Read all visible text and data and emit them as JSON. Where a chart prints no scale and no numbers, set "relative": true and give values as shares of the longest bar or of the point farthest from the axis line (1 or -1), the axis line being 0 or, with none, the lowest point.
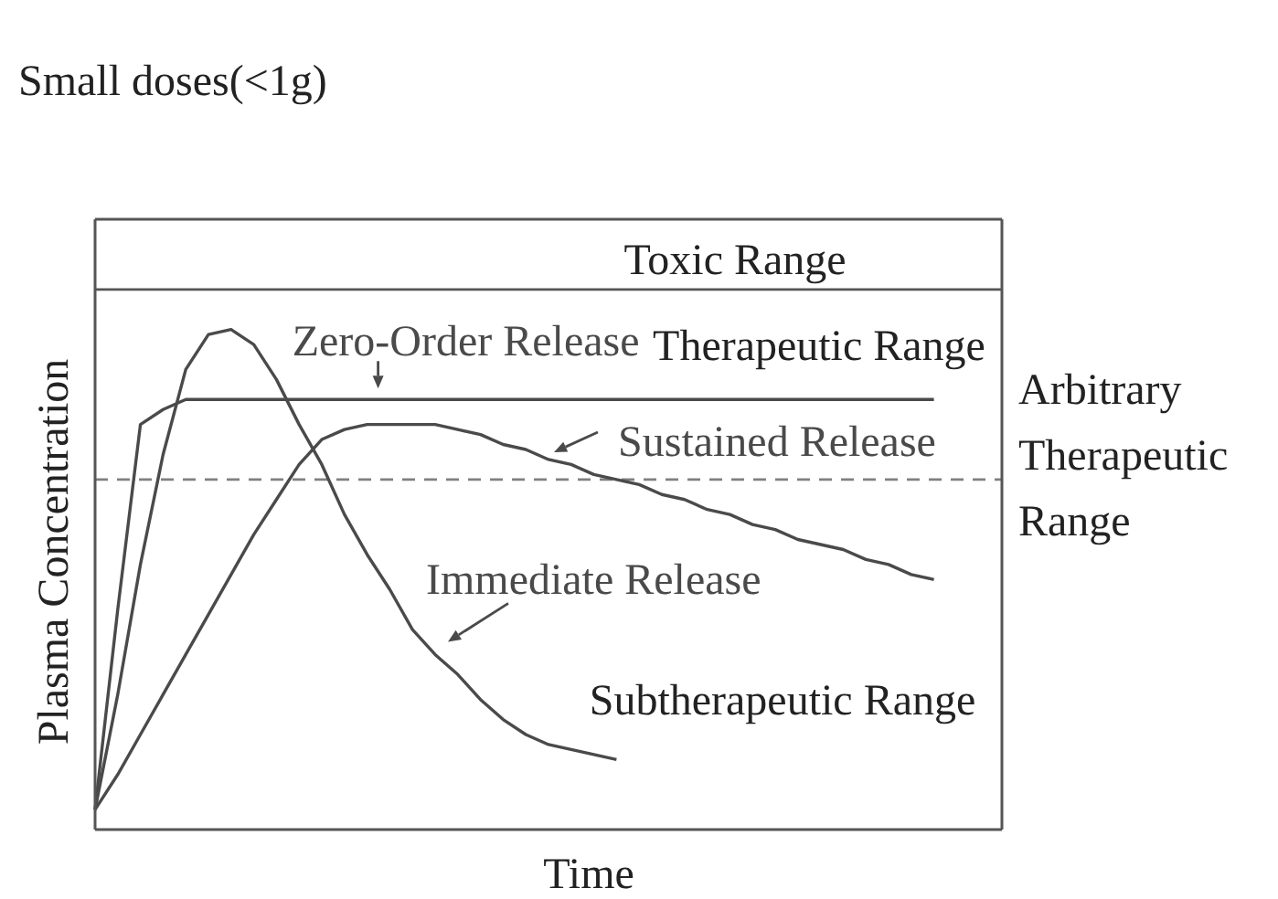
{
  "chart_data": {
    "type": "line",
    "relative": true,
    "title": "Small doses(<1g)",
    "xlabel": "Time",
    "ylabel": "Plasma Concentration",
    "categories": [
      null,
      null,
      null,
      null,
      null,
      null,
      null,
      null,
      null,
      null,
      null,
      null,
      null,
      null,
      null,
      null,
      null,
      null,
      null,
      null,
      null,
      null,
      null,
      null,
      null,
      null,
      null,
      null,
      null,
      null,
      null,
      null,
      null,
      null,
      null,
      null,
      null,
      null,
      null,
      null,
      null
    ],
    "series": [
      {
        "name": "Zero-Order Release",
        "color": "#4a4a4a",
        "values": [
          0.04,
          0.44,
          0.81,
          0.84,
          0.86,
          0.86,
          0.86,
          0.86,
          0.86,
          0.86,
          0.86,
          0.86,
          0.86,
          0.86,
          0.86,
          0.86,
          0.86,
          0.86,
          0.86,
          0.86,
          0.86,
          0.86,
          0.86,
          0.86,
          0.86,
          0.86,
          0.86,
          0.86,
          0.86,
          0.86,
          0.86,
          0.86,
          0.86,
          0.86,
          0.86,
          0.86,
          0.86,
          0.86,
          null,
          null,
          null
        ]
      },
      {
        "name": "Sustained Release",
        "color": "#4a4a4a",
        "values": [
          0.04,
          0.11,
          0.19,
          0.27,
          0.35,
          0.43,
          0.51,
          0.59,
          0.66,
          0.73,
          0.78,
          0.8,
          0.81,
          0.81,
          0.81,
          0.81,
          0.8,
          0.79,
          0.77,
          0.76,
          0.74,
          0.73,
          0.71,
          0.7,
          0.69,
          0.67,
          0.66,
          0.64,
          0.63,
          0.61,
          0.6,
          0.58,
          0.57,
          0.56,
          0.54,
          0.53,
          0.51,
          0.5,
          null,
          null,
          null
        ]
      },
      {
        "name": "Immediate Release",
        "color": "#4a4a4a",
        "values": [
          0.04,
          0.27,
          0.53,
          0.75,
          0.92,
          0.99,
          1,
          0.97,
          0.9,
          0.81,
          0.73,
          0.63,
          0.55,
          0.48,
          0.4,
          0.35,
          0.31,
          0.26,
          0.22,
          0.19,
          0.17,
          0.16,
          0.15,
          0.14,
          null,
          null,
          null,
          null,
          null,
          null,
          null,
          null,
          null,
          null,
          null,
          null,
          null,
          null,
          null,
          null,
          null
        ]
      }
    ],
    "ref_lines": [
      {
        "axis": "y",
        "value": 1.08,
        "color": "#555555"
      },
      {
        "axis": "y",
        "value": 0.7,
        "color": "#808080",
        "line_style": "dashed"
      }
    ],
    "annotations": [
      "Toxic Range",
      "Therapeutic Range",
      "Subtherapeutic Range",
      "Arbitrary Therapeutic Range"
    ]
  }
}
